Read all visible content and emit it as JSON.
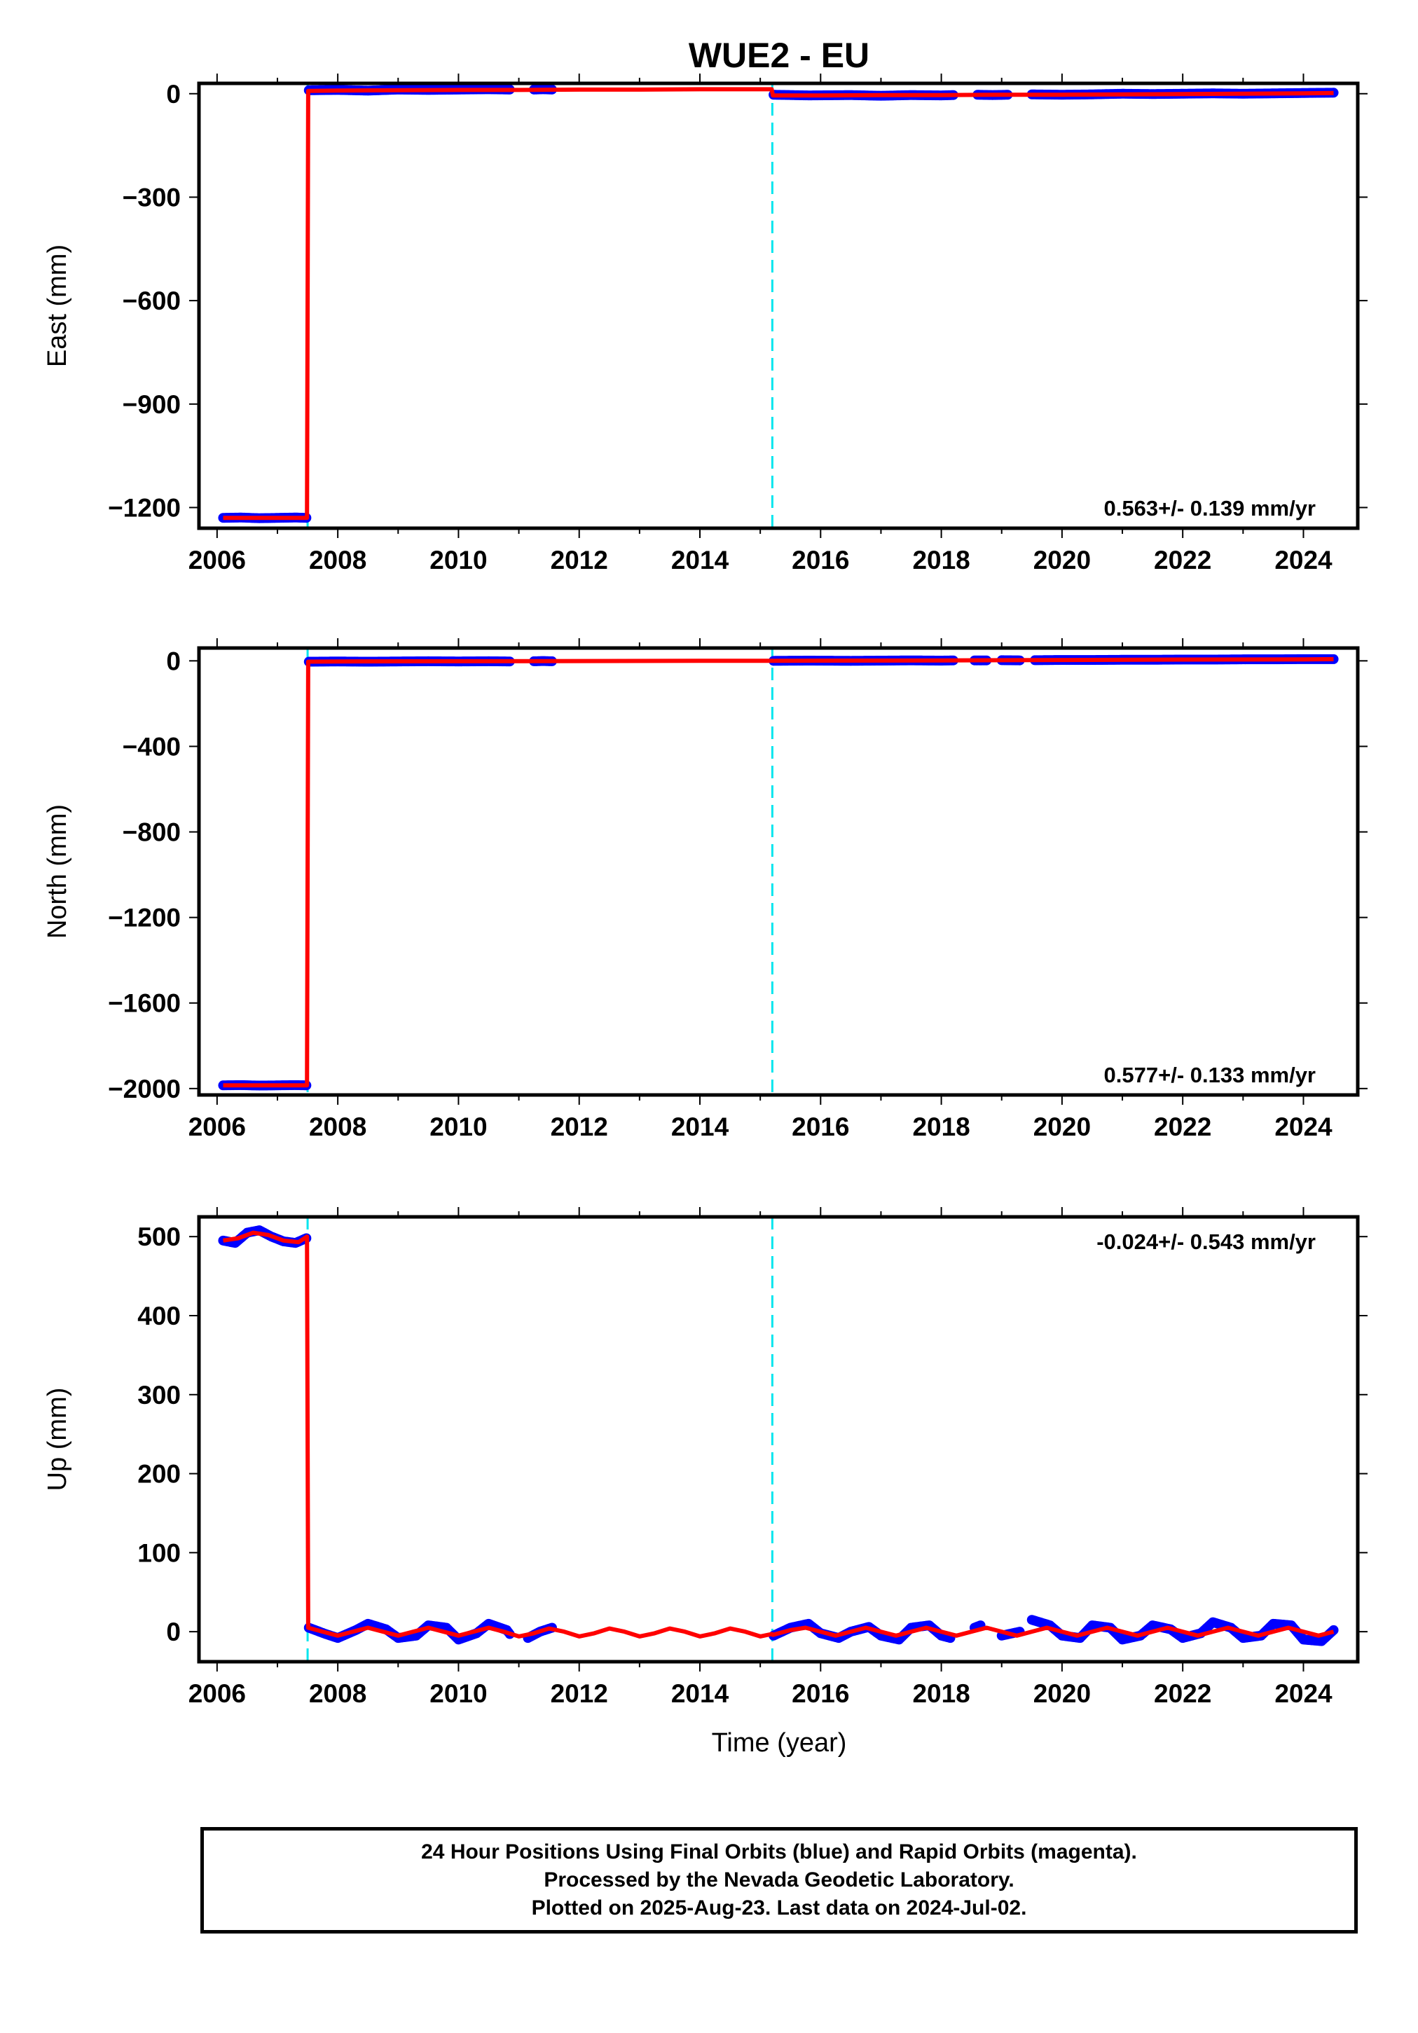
{
  "title": "WUE2 - EU",
  "xlabel": "Time (year)",
  "colors": {
    "final_orbits": "#0000ff",
    "model_fit": "#ff0000",
    "offset_line": "#00e5ee",
    "axes": "#000000"
  },
  "chart_data": [
    {
      "type": "scatter",
      "panel": "east",
      "ylabel": "East (mm)",
      "xlim": [
        2005.7,
        2024.9
      ],
      "ylim": [
        -1260,
        30
      ],
      "xticks": [
        2006,
        2008,
        2010,
        2012,
        2014,
        2016,
        2018,
        2020,
        2022,
        2024
      ],
      "xtick_labels": [
        "2006",
        "2008",
        "2010",
        "2012",
        "2014",
        "2016",
        "2018",
        "2020",
        "2022",
        "2024"
      ],
      "yticks": [
        0,
        -300,
        -600,
        -900,
        -1200
      ],
      "ytick_labels": [
        "0",
        "−300",
        "−600",
        "−900",
        "−1200"
      ],
      "annotation": "0.563+/- 0.139 mm/yr",
      "annotation_position": "bottom-right",
      "offset_lines_x": [
        2007.5,
        2015.2
      ],
      "series": [
        {
          "role": "daily positions",
          "segments": [
            {
              "x": [
                2006.1,
                2006.4,
                2006.7,
                2007.0,
                2007.3,
                2007.48
              ],
              "y": [
                -1230,
                -1229,
                -1231,
                -1230,
                -1229,
                -1230
              ]
            },
            {
              "x": [
                2007.52,
                2008.0,
                2008.5,
                2009.0,
                2009.5,
                2010.0,
                2010.5,
                2010.85
              ],
              "y": [
                10,
                11,
                9,
                12,
                11,
                12,
                13,
                12
              ]
            },
            {
              "x": [
                2011.25,
                2011.4,
                2011.55
              ],
              "y": [
                12,
                13,
                12
              ]
            },
            {
              "x": [
                2015.22,
                2015.8,
                2016.5,
                2017.0,
                2017.5,
                2018.0,
                2018.2
              ],
              "y": [
                -3,
                -5,
                -4,
                -6,
                -4,
                -5,
                -4
              ]
            },
            {
              "x": [
                2018.6,
                2018.85,
                2019.1
              ],
              "y": [
                -3,
                -4,
                -3
              ]
            },
            {
              "x": [
                2019.5,
                2020.0,
                2020.5,
                2021.0,
                2021.5,
                2022.0,
                2022.5,
                2023.0,
                2023.5,
                2024.0,
                2024.5
              ],
              "y": [
                -2,
                -3,
                -2,
                0,
                -1,
                0,
                1,
                0,
                1,
                2,
                3
              ]
            }
          ]
        },
        {
          "role": "model fit",
          "x": [
            2006.1,
            2006.5,
            2007.0,
            2007.49,
            2007.51,
            2008.0,
            2009.0,
            2010.0,
            2011.0,
            2012.0,
            2013.0,
            2014.0,
            2015.19,
            2015.21,
            2016.0,
            2017.0,
            2018.0,
            2019.0,
            2020.0,
            2021.0,
            2022.0,
            2023.0,
            2024.0,
            2024.5
          ],
          "y": [
            -1230,
            -1230,
            -1230,
            -1230,
            8,
            9,
            10,
            11,
            11,
            12,
            12,
            13,
            13,
            -5,
            -5,
            -4,
            -4,
            -3,
            -3,
            -2,
            -1,
            0,
            1,
            2
          ]
        }
      ]
    },
    {
      "type": "scatter",
      "panel": "north",
      "ylabel": "North (mm)",
      "xlim": [
        2005.7,
        2024.9
      ],
      "ylim": [
        -2030,
        60
      ],
      "xticks": [
        2006,
        2008,
        2010,
        2012,
        2014,
        2016,
        2018,
        2020,
        2022,
        2024
      ],
      "xtick_labels": [
        "2006",
        "2008",
        "2010",
        "2012",
        "2014",
        "2016",
        "2018",
        "2020",
        "2022",
        "2024"
      ],
      "yticks": [
        0,
        -400,
        -800,
        -1200,
        -1600,
        -2000
      ],
      "ytick_labels": [
        "0",
        "−400",
        "−800",
        "−1200",
        "−1600",
        "−2000"
      ],
      "annotation": "0.577+/- 0.133 mm/yr",
      "annotation_position": "bottom-right",
      "offset_lines_x": [
        2007.5,
        2015.2
      ],
      "series": [
        {
          "role": "daily positions",
          "segments": [
            {
              "x": [
                2006.1,
                2006.4,
                2006.7,
                2007.0,
                2007.3,
                2007.48
              ],
              "y": [
                -1985,
                -1984,
                -1986,
                -1985,
                -1984,
                -1985
              ]
            },
            {
              "x": [
                2007.52,
                2008.0,
                2008.5,
                2009.0,
                2009.5,
                2010.0,
                2010.5,
                2010.85
              ],
              "y": [
                -4,
                -3,
                -4,
                -3,
                -2,
                -3,
                -2,
                -3
              ]
            },
            {
              "x": [
                2011.25,
                2011.4,
                2011.55
              ],
              "y": [
                -2,
                -1,
                -2
              ]
            },
            {
              "x": [
                2015.22,
                2015.8,
                2016.5,
                2017.0,
                2017.5,
                2018.0,
                2018.2
              ],
              "y": [
                0,
                1,
                0,
                1,
                2,
                1,
                2
              ]
            },
            {
              "x": [
                2018.55,
                2018.75
              ],
              "y": [
                2,
                2
              ]
            },
            {
              "x": [
                2019.0,
                2019.3
              ],
              "y": [
                3,
                2
              ]
            },
            {
              "x": [
                2019.55,
                2020.0,
                2020.5,
                2021.0,
                2021.5,
                2022.0,
                2022.5,
                2023.0,
                2023.5,
                2024.0,
                2024.5
              ],
              "y": [
                3,
                4,
                4,
                5,
                5,
                6,
                6,
                7,
                7,
                8,
                8
              ]
            }
          ]
        },
        {
          "role": "model fit",
          "x": [
            2006.1,
            2007.0,
            2007.49,
            2007.51,
            2008.0,
            2010.0,
            2012.0,
            2014.0,
            2015.19,
            2015.21,
            2016.0,
            2018.0,
            2020.0,
            2022.0,
            2024.0,
            2024.5
          ],
          "y": [
            -1985,
            -1985,
            -1985,
            -4,
            -3,
            -2,
            -1,
            0,
            0,
            0,
            1,
            2,
            4,
            6,
            7,
            8
          ]
        }
      ]
    },
    {
      "type": "scatter",
      "panel": "up",
      "ylabel": "Up (mm)",
      "xlim": [
        2005.7,
        2024.9
      ],
      "ylim": [
        -38,
        525
      ],
      "xticks": [
        2006,
        2008,
        2010,
        2012,
        2014,
        2016,
        2018,
        2020,
        2022,
        2024
      ],
      "xtick_labels": [
        "2006",
        "2008",
        "2010",
        "2012",
        "2014",
        "2016",
        "2018",
        "2020",
        "2022",
        "2024"
      ],
      "yticks": [
        500,
        400,
        300,
        200,
        100,
        0
      ],
      "ytick_labels": [
        "500",
        "400",
        "300",
        "200",
        "100",
        "0"
      ],
      "annotation": "-0.024+/- 0.543 mm/yr",
      "annotation_position": "top-right",
      "offset_lines_x": [
        2007.5,
        2015.2
      ],
      "series": [
        {
          "role": "daily positions",
          "segments": [
            {
              "x": [
                2006.1,
                2006.3,
                2006.5,
                2006.7,
                2006.9,
                2007.1,
                2007.3,
                2007.48
              ],
              "y": [
                495,
                492,
                505,
                508,
                500,
                494,
                492,
                498
              ]
            },
            {
              "x": [
                2007.52,
                2007.8,
                2008.0,
                2008.3,
                2008.5,
                2008.8,
                2009.0,
                2009.3,
                2009.5,
                2009.8,
                2010.0,
                2010.3,
                2010.5,
                2010.8,
                2010.85
              ],
              "y": [
                5,
                -3,
                -8,
                2,
                10,
                3,
                -8,
                -5,
                8,
                5,
                -10,
                -2,
                10,
                2,
                -3
              ]
            },
            {
              "x": [
                2011.15,
                2011.35,
                2011.55
              ],
              "y": [
                -8,
                0,
                5
              ]
            },
            {
              "x": [
                2015.22,
                2015.5,
                2015.8,
                2016.0,
                2016.3,
                2016.5,
                2016.8,
                2017.0,
                2017.3,
                2017.5,
                2017.8,
                2018.0,
                2018.15
              ],
              "y": [
                -5,
                5,
                10,
                -2,
                -8,
                0,
                6,
                -5,
                -10,
                5,
                8,
                -5,
                -8
              ]
            },
            {
              "x": [
                2018.55,
                2018.65
              ],
              "y": [
                5,
                8
              ]
            },
            {
              "x": [
                2019.0,
                2019.3
              ],
              "y": [
                -5,
                0
              ]
            },
            {
              "x": [
                2019.5,
                2019.8,
                2020.0,
                2020.3,
                2020.5,
                2020.8,
                2021.0,
                2021.3,
                2021.5,
                2021.8,
                2022.0,
                2022.3,
                2022.5,
                2022.8,
                2023.0,
                2023.3,
                2023.5,
                2023.8,
                2024.0,
                2024.3,
                2024.5
              ],
              "y": [
                15,
                8,
                -5,
                -8,
                8,
                5,
                -10,
                -5,
                8,
                3,
                -8,
                -2,
                12,
                5,
                -8,
                -5,
                10,
                8,
                -10,
                -12,
                2
              ]
            }
          ]
        },
        {
          "role": "model fit",
          "x": [
            2006.1,
            2006.35,
            2006.6,
            2006.85,
            2007.1,
            2007.35,
            2007.49,
            2007.51,
            2007.75,
            2008.0,
            2008.25,
            2008.5,
            2008.75,
            2009.0,
            2009.25,
            2009.5,
            2009.75,
            2010.0,
            2010.25,
            2010.5,
            2010.75,
            2011.0,
            2011.25,
            2011.5,
            2011.75,
            2012.0,
            2012.25,
            2012.5,
            2012.75,
            2013.0,
            2013.25,
            2013.5,
            2013.75,
            2014.0,
            2014.25,
            2014.5,
            2014.75,
            2015.0,
            2015.19,
            2015.21,
            2015.5,
            2015.75,
            2016.0,
            2016.25,
            2016.5,
            2016.75,
            2017.0,
            2017.25,
            2017.5,
            2017.75,
            2018.0,
            2018.25,
            2018.5,
            2018.75,
            2019.0,
            2019.25,
            2019.5,
            2019.75,
            2020.0,
            2020.25,
            2020.5,
            2020.75,
            2021.0,
            2021.25,
            2021.5,
            2021.75,
            2022.0,
            2022.25,
            2022.5,
            2022.75,
            2023.0,
            2023.25,
            2023.5,
            2023.75,
            2024.0,
            2024.25,
            2024.5
          ],
          "y": [
            495,
            498,
            505,
            502,
            495,
            493,
            500,
            5,
            0,
            -5,
            0,
            5,
            0,
            -5,
            0,
            5,
            0,
            -5,
            0,
            5,
            0,
            -6,
            -2,
            4,
            0,
            -6,
            -2,
            4,
            0,
            -6,
            -2,
            4,
            0,
            -6,
            -2,
            4,
            0,
            -6,
            -3,
            -4,
            2,
            5,
            0,
            -5,
            0,
            5,
            0,
            -5,
            0,
            5,
            0,
            -5,
            0,
            5,
            0,
            -5,
            0,
            5,
            0,
            -5,
            0,
            5,
            0,
            -5,
            0,
            5,
            0,
            -5,
            0,
            5,
            0,
            -5,
            0,
            5,
            0,
            -5,
            0
          ]
        }
      ]
    }
  ],
  "footer": {
    "line1": "24 Hour Positions Using Final Orbits (blue) and Rapid Orbits (magenta).",
    "line2": "Processed by the Nevada Geodetic Laboratory.",
    "line3": "Plotted on 2025-Aug-23. Last data on 2024-Jul-02."
  }
}
